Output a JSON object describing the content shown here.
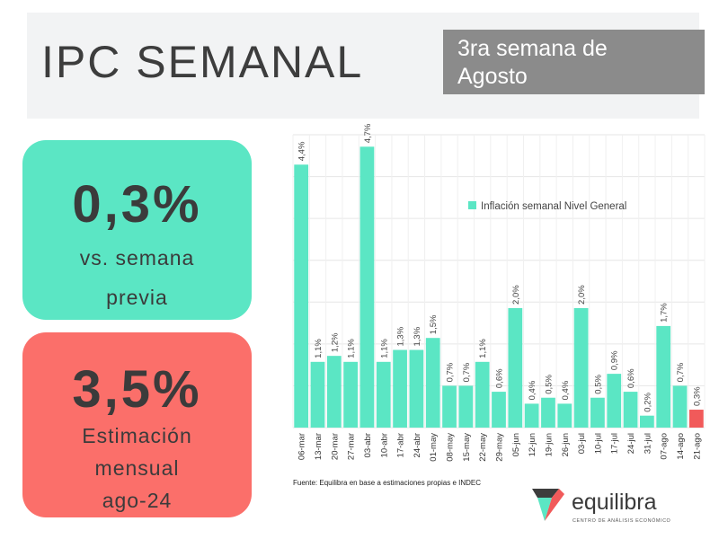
{
  "header": {
    "title": "IPC SEMANAL",
    "week_line1": "3ra semana de",
    "week_line2": "Agosto"
  },
  "cards": {
    "weekly": {
      "value": "0,3%",
      "line1": "vs. semana",
      "line2": "previa"
    },
    "monthly": {
      "value": "3,5%",
      "line1": "Estimación",
      "line2": "mensual",
      "line3": "ago-24"
    }
  },
  "colors": {
    "green": "#5be6c4",
    "red": "#fb6f6a",
    "highlight": "#f15a5a",
    "grid": "#e6e6e6"
  },
  "chart_data": {
    "type": "bar",
    "title": "",
    "legend": "Inflación semanal Nivel General",
    "legend_position": "top-right",
    "xlabel": "",
    "ylabel": "",
    "ylim": [
      0,
      4.9
    ],
    "grid": true,
    "categories": [
      "06-mar",
      "13-mar",
      "20-mar",
      "27-mar",
      "03-abr",
      "10-abr",
      "17-abr",
      "24-abr",
      "01-may",
      "08-may",
      "15-may",
      "22-may",
      "29-may",
      "05-jun",
      "12-jun",
      "19-jun",
      "26-jun",
      "03-jul",
      "10-jul",
      "17-jul",
      "24-jul",
      "31-jul",
      "07-ago",
      "14-ago",
      "21-ago"
    ],
    "values": [
      4.4,
      1.1,
      1.2,
      1.1,
      4.7,
      1.1,
      1.3,
      1.3,
      1.5,
      0.7,
      0.7,
      1.1,
      0.6,
      2.0,
      0.4,
      0.5,
      0.4,
      2.0,
      0.5,
      0.9,
      0.6,
      0.2,
      1.7,
      0.7,
      0.3
    ],
    "labels": [
      "4,4%",
      "1,1%",
      "1,2%",
      "1,1%",
      "4,7%",
      "1,1%",
      "1,3%",
      "1,3%",
      "1,5%",
      "0,7%",
      "0,7%",
      "1,1%",
      "0,6%",
      "2,0%",
      "0,4%",
      "0,5%",
      "0,4%",
      "2,0%",
      "0,5%",
      "0,9%",
      "0,6%",
      "0,2%",
      "1,7%",
      "0,7%",
      "0,3%"
    ],
    "highlight_last": true
  },
  "source": "Fuente: Equilibra en base a estimaciones propias e INDEC",
  "brand": {
    "name": "equilibra",
    "tagline": "CENTRO DE ANÁLISIS ECONÓMICO"
  }
}
